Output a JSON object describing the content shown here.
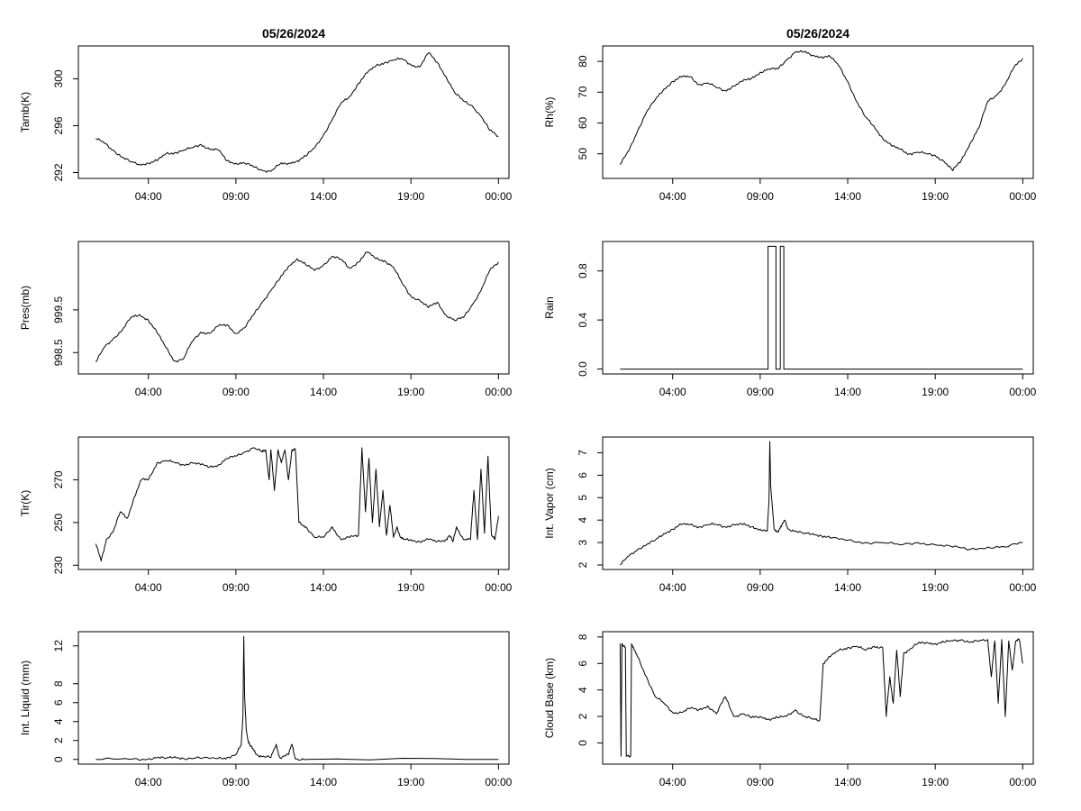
{
  "chart_data": [
    {
      "type": "line",
      "title": "05/26/2024",
      "xlabel": "",
      "ylabel": "Tamb(K)",
      "x_ticks": [
        "04:00",
        "09:00",
        "14:00",
        "19:00",
        "00:00"
      ],
      "y_ticks": [
        "292",
        "296",
        "300"
      ],
      "ylim": [
        291.5,
        302.8
      ],
      "series": [
        {
          "x": [
            1.0,
            1.5,
            2.0,
            2.5,
            3.0,
            3.5,
            4.0,
            4.5,
            5.0,
            5.5,
            6.0,
            6.5,
            7.0,
            7.5,
            8.0,
            8.5,
            9.0,
            9.5,
            10.0,
            10.5,
            11.0,
            11.5,
            12.0,
            12.5,
            13.0,
            13.5,
            14.0,
            14.5,
            15.0,
            15.5,
            16.0,
            16.5,
            17.0,
            17.5,
            18.0,
            18.5,
            19.0,
            19.5,
            20.0,
            20.5,
            21.0,
            21.5,
            22.0,
            22.5,
            23.0,
            23.5,
            24.0
          ],
          "y": [
            294.9,
            294.5,
            293.9,
            293.3,
            292.9,
            292.7,
            292.8,
            293.0,
            293.6,
            293.7,
            293.9,
            294.1,
            294.4,
            294.0,
            293.9,
            293.0,
            292.8,
            292.8,
            292.5,
            292.2,
            292.1,
            292.7,
            292.8,
            293.0,
            293.4,
            294.1,
            295.2,
            296.5,
            297.9,
            298.5,
            299.6,
            300.5,
            301.1,
            301.4,
            301.6,
            301.7,
            301.2,
            301.0,
            302.2,
            301.4,
            300.2,
            298.8,
            298.1,
            297.7,
            296.8,
            295.6,
            295.1
          ]
        }
      ]
    },
    {
      "type": "line",
      "title": "05/26/2024",
      "xlabel": "",
      "ylabel": "Rh(%)",
      "x_ticks": [
        "04:00",
        "09:00",
        "14:00",
        "19:00",
        "00:00"
      ],
      "y_ticks": [
        "50",
        "60",
        "70",
        "80"
      ],
      "ylim": [
        42,
        85
      ],
      "series": [
        {
          "x": [
            1.0,
            1.5,
            2.0,
            2.5,
            3.0,
            3.5,
            4.0,
            4.5,
            5.0,
            5.5,
            6.0,
            6.5,
            7.0,
            7.5,
            8.0,
            8.5,
            9.0,
            9.5,
            10.0,
            10.5,
            11.0,
            11.5,
            12.0,
            12.5,
            13.0,
            13.5,
            14.0,
            14.5,
            15.0,
            15.5,
            16.0,
            16.5,
            17.0,
            17.5,
            18.0,
            18.5,
            19.0,
            19.5,
            20.0,
            20.5,
            21.0,
            21.5,
            22.0,
            22.5,
            23.0,
            23.5,
            24.0
          ],
          "y": [
            46.5,
            51.0,
            57.5,
            63.5,
            67.5,
            71.0,
            73.5,
            74.9,
            75.0,
            72.5,
            73.0,
            71.5,
            70.5,
            72.0,
            73.5,
            74.5,
            76.5,
            77.5,
            77.5,
            80.5,
            83.0,
            83.0,
            82.0,
            81.5,
            81.5,
            78.5,
            73.5,
            67.0,
            62.0,
            59.0,
            55.0,
            52.5,
            51.5,
            50.0,
            50.5,
            50.0,
            49.5,
            47.5,
            44.5,
            48.0,
            53.5,
            58.5,
            67.0,
            69.0,
            72.5,
            78.0,
            81.0
          ]
        }
      ]
    },
    {
      "type": "line",
      "title": "",
      "xlabel": "",
      "ylabel": "Pres(mb)",
      "x_ticks": [
        "04:00",
        "09:00",
        "14:00",
        "19:00",
        "00:00"
      ],
      "y_ticks": [
        "998.5",
        "999.5"
      ],
      "ylim": [
        998.0,
        1001.1
      ],
      "series": [
        {
          "x": [
            1.0,
            1.5,
            2.0,
            2.5,
            3.0,
            3.5,
            4.0,
            4.5,
            5.0,
            5.5,
            6.0,
            6.5,
            7.0,
            7.5,
            8.0,
            8.5,
            9.0,
            9.5,
            10.0,
            10.5,
            11.0,
            11.5,
            12.0,
            12.5,
            13.0,
            13.5,
            14.0,
            14.5,
            15.0,
            15.5,
            16.0,
            16.5,
            17.0,
            17.5,
            18.0,
            18.5,
            19.0,
            19.5,
            20.0,
            20.5,
            21.0,
            21.5,
            22.0,
            22.5,
            23.0,
            23.5,
            24.0
          ],
          "y": [
            998.28,
            998.63,
            998.83,
            999.02,
            999.32,
            999.39,
            999.26,
            998.96,
            998.62,
            998.3,
            998.35,
            998.76,
            998.98,
            998.95,
            999.12,
            999.15,
            998.95,
            999.08,
            999.38,
            999.68,
            999.95,
            1000.22,
            1000.52,
            1000.7,
            1000.55,
            1000.42,
            1000.55,
            1000.75,
            1000.68,
            1000.48,
            1000.62,
            1000.85,
            1000.7,
            1000.65,
            1000.5,
            1000.12,
            999.82,
            999.72,
            999.55,
            999.68,
            999.38,
            999.25,
            999.32,
            999.62,
            999.95,
            1000.42,
            1000.62
          ]
        }
      ]
    },
    {
      "type": "line",
      "title": "",
      "xlabel": "",
      "ylabel": "Rain",
      "x_ticks": [
        "04:00",
        "09:00",
        "14:00",
        "19:00",
        "00:00"
      ],
      "y_ticks": [
        "0.0",
        "0.4",
        "0.8"
      ],
      "ylim": [
        -0.04,
        1.04
      ],
      "series": [
        {
          "x": [
            1.0,
            9.45,
            9.45,
            9.9,
            9.9,
            10.15,
            10.15,
            10.35,
            10.35,
            24.0
          ],
          "y": [
            0,
            0,
            1,
            1,
            0,
            0,
            1,
            1,
            0,
            0
          ]
        }
      ]
    },
    {
      "type": "line",
      "title": "",
      "xlabel": "",
      "ylabel": "Tir(K)",
      "x_ticks": [
        "04:00",
        "09:00",
        "14:00",
        "19:00",
        "00:00"
      ],
      "y_ticks": [
        "230",
        "250",
        "270"
      ],
      "ylim": [
        228,
        290
      ],
      "series": [
        {
          "x": [
            1.0,
            1.3,
            1.6,
            2.0,
            2.4,
            2.8,
            3.2,
            3.6,
            4.0,
            4.5,
            5.0,
            5.5,
            6.0,
            6.5,
            7.0,
            7.5,
            8.0,
            8.5,
            9.0,
            9.5,
            10.0,
            10.5,
            10.7,
            10.9,
            11.0,
            11.2,
            11.4,
            11.6,
            11.8,
            12.0,
            12.2,
            12.4,
            12.6,
            13.0,
            13.5,
            14.0,
            14.5,
            15.0,
            15.5,
            16.0,
            16.2,
            16.4,
            16.6,
            16.8,
            17.0,
            17.2,
            17.4,
            17.6,
            17.8,
            18.0,
            18.2,
            18.4,
            18.6,
            19.0,
            19.5,
            20.0,
            20.5,
            21.0,
            21.2,
            21.4,
            21.6,
            22.0,
            22.4,
            22.6,
            22.8,
            23.0,
            23.2,
            23.4,
            23.6,
            23.8,
            24.0
          ],
          "y": [
            240,
            232,
            242,
            246,
            255,
            252,
            262,
            270,
            270,
            278,
            279,
            278,
            277,
            278,
            277,
            276,
            277,
            280,
            281,
            283,
            285,
            283,
            284,
            270,
            284,
            265,
            284,
            278,
            284,
            270,
            284,
            284,
            250,
            248,
            243,
            243,
            248,
            242,
            243,
            244,
            285,
            255,
            280,
            250,
            275,
            248,
            265,
            244,
            258,
            243,
            248,
            243,
            242,
            242,
            241,
            242,
            241,
            242,
            244,
            241,
            248,
            242,
            242,
            265,
            242,
            275,
            245,
            281,
            244,
            242,
            253
          ]
        }
      ]
    },
    {
      "type": "line",
      "title": "",
      "xlabel": "",
      "ylabel": "Int. Vapor (cm)",
      "x_ticks": [
        "04:00",
        "09:00",
        "14:00",
        "19:00",
        "00:00"
      ],
      "y_ticks": [
        "2",
        "3",
        "4",
        "5",
        "6",
        "7"
      ],
      "ylim": [
        1.8,
        7.7
      ],
      "series": [
        {
          "x": [
            1.0,
            1.5,
            2.0,
            2.5,
            3.0,
            3.5,
            4.0,
            4.5,
            5.0,
            5.5,
            6.0,
            6.5,
            7.0,
            7.5,
            8.0,
            8.5,
            9.0,
            9.4,
            9.5,
            9.55,
            9.6,
            9.7,
            9.8,
            10.0,
            10.2,
            10.4,
            10.6,
            11.0,
            11.5,
            12.0,
            12.5,
            13.0,
            14.0,
            15.0,
            16.0,
            17.0,
            18.0,
            19.0,
            20.0,
            21.0,
            22.0,
            23.0,
            24.0
          ],
          "y": [
            2.0,
            2.4,
            2.7,
            2.9,
            3.1,
            3.4,
            3.6,
            3.8,
            3.8,
            3.7,
            3.8,
            3.8,
            3.7,
            3.8,
            3.8,
            3.7,
            3.6,
            3.5,
            4.8,
            7.5,
            5.5,
            4.5,
            3.6,
            3.5,
            3.7,
            4.0,
            3.6,
            3.5,
            3.4,
            3.4,
            3.3,
            3.2,
            3.1,
            3.0,
            3.0,
            2.9,
            3.0,
            2.9,
            2.8,
            2.7,
            2.8,
            2.8,
            3.0
          ]
        }
      ]
    },
    {
      "type": "line",
      "title": "",
      "xlabel": "",
      "ylabel": "Int. Liquid (mm)",
      "x_ticks": [
        "04:00",
        "09:00",
        "14:00",
        "19:00",
        "00:00"
      ],
      "y_ticks": [
        "0",
        "2",
        "4",
        "6",
        "8",
        "12"
      ],
      "ylim": [
        -0.5,
        13.5
      ],
      "series": [
        {
          "x": [
            1.0,
            3.0,
            4.0,
            4.5,
            5.0,
            5.5,
            6.0,
            7.0,
            8.0,
            8.5,
            9.0,
            9.3,
            9.4,
            9.45,
            9.5,
            9.6,
            9.7,
            9.8,
            10.0,
            10.2,
            10.5,
            11.0,
            11.3,
            11.5,
            12.0,
            12.2,
            12.4,
            13.0,
            24.0
          ],
          "y": [
            0,
            0,
            0.05,
            0.2,
            0.1,
            0.3,
            0.1,
            0.1,
            0.1,
            0.2,
            0.5,
            1.5,
            4.5,
            13.0,
            6.5,
            3.0,
            2.0,
            1.5,
            1.0,
            0.5,
            0.3,
            0.2,
            1.6,
            0.2,
            0.5,
            1.6,
            0.05,
            0,
            0
          ]
        }
      ]
    },
    {
      "type": "line",
      "title": "",
      "xlabel": "",
      "ylabel": "Cloud Base (km)",
      "x_ticks": [
        "04:00",
        "09:00",
        "14:00",
        "19:00",
        "00:00"
      ],
      "y_ticks": [
        "0",
        "2",
        "4",
        "6",
        "8"
      ],
      "ylim": [
        -1.6,
        8.4
      ],
      "series": [
        {
          "x": [
            1.0,
            1.05,
            1.1,
            1.3,
            1.35,
            1.6,
            1.65,
            1.8,
            2.0,
            2.5,
            3.0,
            3.5,
            4.0,
            4.5,
            5.0,
            5.5,
            6.0,
            6.5,
            7.0,
            7.5,
            8.0,
            8.5,
            9.0,
            9.5,
            10.0,
            10.5,
            11.0,
            11.5,
            12.0,
            12.4,
            12.6,
            13.0,
            13.5,
            14.0,
            14.5,
            15.0,
            15.5,
            16.0,
            16.2,
            16.4,
            16.6,
            16.8,
            17.0,
            17.2,
            17.5,
            18.0,
            18.5,
            19.0,
            19.5,
            20.0,
            20.5,
            21.0,
            21.5,
            22.0,
            22.2,
            22.4,
            22.6,
            22.8,
            23.0,
            23.2,
            23.4,
            23.6,
            23.8,
            24.0
          ],
          "y": [
            7.5,
            -1.0,
            7.5,
            7.2,
            -1.0,
            -1.0,
            7.5,
            7.0,
            6.5,
            5.0,
            3.5,
            3.0,
            2.3,
            2.3,
            2.6,
            2.5,
            2.8,
            2.2,
            3.5,
            2.0,
            2.2,
            1.9,
            2.0,
            1.8,
            1.9,
            2.0,
            2.5,
            2.0,
            1.8,
            1.7,
            6.0,
            6.5,
            7.0,
            7.2,
            7.3,
            7.0,
            7.3,
            7.2,
            2.0,
            5.0,
            3.0,
            7.0,
            3.5,
            6.8,
            7.0,
            7.5,
            7.6,
            7.5,
            7.6,
            7.7,
            7.8,
            7.6,
            7.7,
            7.8,
            5.0,
            7.7,
            3.0,
            7.8,
            2.0,
            7.7,
            5.5,
            7.7,
            7.8,
            6.0
          ]
        }
      ]
    }
  ]
}
